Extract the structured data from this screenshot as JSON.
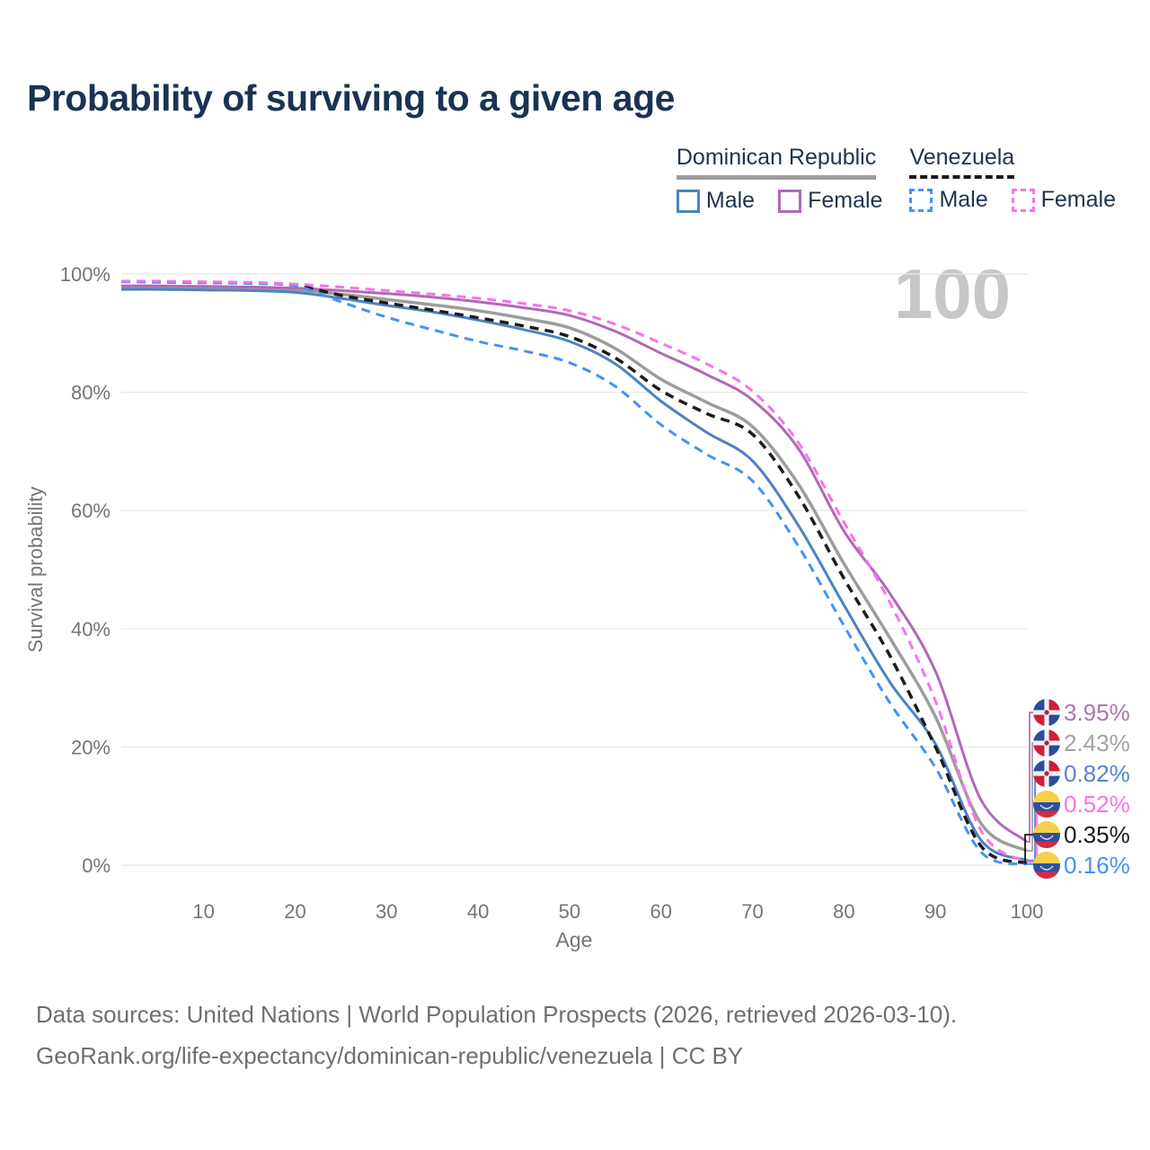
{
  "title": "Probability of surviving to a given age",
  "watermark": "100",
  "legend": {
    "groups": [
      {
        "label": "Dominican Republic",
        "style": "solid",
        "color": "#9d9d9d",
        "items": [
          {
            "label": "Male",
            "color": "#4d82c4",
            "dashed": false
          },
          {
            "label": "Female",
            "color": "#b06ab4",
            "dashed": false
          }
        ]
      },
      {
        "label": "Venezuela",
        "style": "dashed",
        "color": "#1a1a1a",
        "items": [
          {
            "label": "Male",
            "color": "#4392f7",
            "dashed": true
          },
          {
            "label": "Female",
            "color": "#f973e6",
            "dashed": true
          }
        ]
      }
    ]
  },
  "chart_data": {
    "type": "line",
    "title": "Probability of surviving to a given age",
    "xlabel": "Age",
    "ylabel": "Survival probability",
    "xlim": [
      1,
      100
    ],
    "ylim": [
      0,
      100
    ],
    "grid": "horizontal",
    "x_ticks": [
      10,
      20,
      30,
      40,
      50,
      60,
      70,
      80,
      90,
      100
    ],
    "y_tick_values": [
      0,
      20,
      40,
      60,
      80,
      100
    ],
    "y_tick_labels": [
      "0%",
      "20%",
      "40%",
      "60%",
      "80%",
      "100%"
    ],
    "x": [
      1,
      5,
      10,
      15,
      20,
      25,
      30,
      35,
      40,
      45,
      50,
      55,
      60,
      65,
      70,
      75,
      80,
      85,
      90,
      95,
      100
    ],
    "series": [
      {
        "key": "dr-both",
        "name": "Dominican Republic — Both sexes",
        "color": "#9d9d9d",
        "dashed": false,
        "width": 3.5,
        "values": [
          97.7,
          97.7,
          97.6,
          97.5,
          97.3,
          96.6,
          95.7,
          94.8,
          93.8,
          92.5,
          90.9,
          87.4,
          82.2,
          78.3,
          74.2,
          64.5,
          51.0,
          38.5,
          25.1,
          7.0,
          2.43
        ]
      },
      {
        "key": "dr-female",
        "name": "Dominican Republic — Female",
        "color": "#b06ab4",
        "dashed": false,
        "width": 3,
        "values": [
          98.0,
          98.0,
          97.9,
          97.8,
          97.6,
          97.2,
          96.7,
          96.1,
          95.3,
          94.3,
          93.0,
          90.3,
          86.6,
          83.0,
          78.7,
          70.5,
          56.5,
          46.0,
          32.8,
          11.0,
          3.95
        ]
      },
      {
        "key": "dr-male",
        "name": "Dominican Republic — Male",
        "color": "#4d82c4",
        "dashed": false,
        "width": 3,
        "values": [
          97.4,
          97.4,
          97.3,
          97.2,
          96.9,
          95.9,
          94.7,
          93.6,
          92.2,
          90.6,
          88.6,
          84.8,
          78.5,
          73.2,
          68.4,
          57.5,
          44.0,
          31.0,
          20.5,
          4.2,
          0.82
        ]
      },
      {
        "key": "ve-both",
        "name": "Venezuela — Both sexes",
        "color": "#1c1c1c",
        "dashed": true,
        "width": 3.5,
        "values": [
          98.75,
          98.7,
          98.6,
          98.5,
          98.1,
          96.4,
          95.1,
          93.9,
          92.6,
          91.2,
          89.4,
          85.8,
          80.3,
          76.4,
          72.9,
          62.5,
          48.5,
          35.5,
          20.0,
          3.2,
          0.35
        ]
      },
      {
        "key": "ve-male",
        "name": "Venezuela — Male",
        "color": "#4392f7",
        "dashed": true,
        "width": 3,
        "values": [
          98.7,
          98.6,
          98.5,
          98.4,
          98.0,
          95.3,
          92.7,
          90.6,
          88.6,
          87.0,
          85.0,
          81.0,
          74.5,
          69.5,
          65.0,
          54.0,
          40.5,
          27.5,
          16.5,
          2.2,
          0.16
        ]
      },
      {
        "key": "ve-female",
        "name": "Venezuela — Female",
        "color": "#f973e6",
        "dashed": true,
        "width": 3,
        "values": [
          98.8,
          98.8,
          98.7,
          98.6,
          98.3,
          97.8,
          97.2,
          96.6,
          95.9,
          95.0,
          93.8,
          91.5,
          88.3,
          84.8,
          80.2,
          71.5,
          58.0,
          44.5,
          27.8,
          5.8,
          0.52
        ]
      }
    ]
  },
  "end_labels": [
    {
      "series": "dr-female",
      "text": "3.95%",
      "color": "#b472b4",
      "flag": "dominican-republic"
    },
    {
      "series": "dr-both",
      "text": "2.43%",
      "color": "#a3a3a3",
      "flag": "dominican-republic"
    },
    {
      "series": "dr-male",
      "text": "0.82%",
      "color": "#5585ce",
      "flag": "dominican-republic"
    },
    {
      "series": "ve-female",
      "text": "0.52%",
      "color": "#f973e6",
      "flag": "venezuela"
    },
    {
      "series": "ve-both",
      "text": "0.35%",
      "color": "#1a1a1a",
      "flag": "venezuela"
    },
    {
      "series": "ve-male",
      "text": "0.16%",
      "color": "#4392f7",
      "flag": "venezuela"
    }
  ],
  "footer": {
    "line1": "Data sources: United Nations | World Population Prospects (2026, retrieved 2026-03-10).",
    "line2": "GeoRank.org/life-expectancy/dominican-republic/venezuela | CC BY"
  }
}
